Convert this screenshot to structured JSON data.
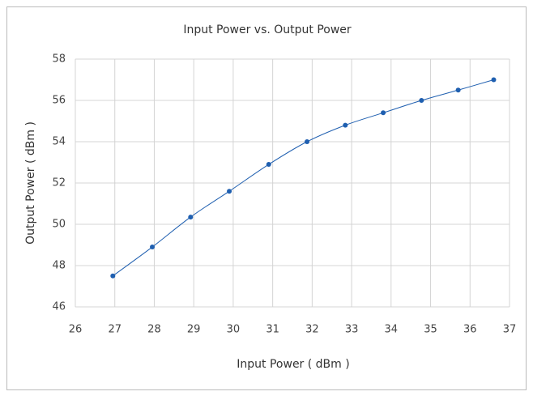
{
  "chart_data": {
    "type": "scatter",
    "title": "Input Power vs. Output Power",
    "x_label": "Input Power ( dBm )",
    "y_label": "Output Power ( dBm )",
    "series": [
      {
        "name": "Output Power",
        "color": "#1f5fb0",
        "x": [
          26.95,
          27.95,
          28.92,
          29.9,
          30.9,
          31.87,
          32.84,
          33.8,
          34.77,
          35.7,
          36.6
        ],
        "values": [
          47.5,
          48.9,
          50.35,
          51.6,
          52.9,
          54.0,
          54.8,
          55.4,
          56.0,
          56.5,
          57.0
        ]
      }
    ],
    "xlim": [
      26,
      37
    ],
    "xticks": [
      26,
      27,
      28,
      29,
      30,
      31,
      32,
      33,
      34,
      35,
      36,
      37
    ],
    "ylim": [
      46,
      58
    ],
    "yticks": [
      46,
      48,
      50,
      52,
      54,
      56,
      58
    ],
    "grid": true,
    "smooth": true
  }
}
